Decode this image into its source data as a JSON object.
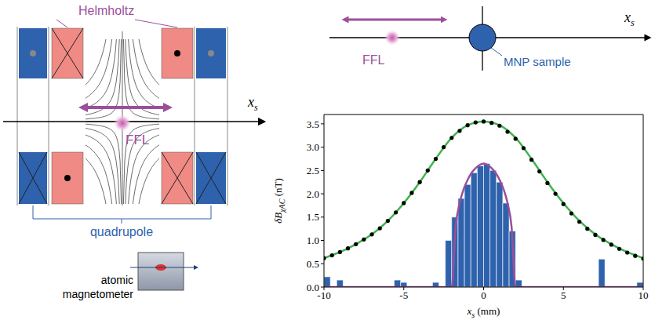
{
  "diagram": {
    "left": {
      "helmholtz_label": "Helmholtz",
      "quadrupole_label": "quadrupole",
      "ffl_label": "FFL",
      "axis_label": {
        "main": "x",
        "sub": "s"
      },
      "sensor_label": [
        "atomic",
        "magnetometer"
      ]
    },
    "top_right": {
      "ffl_label": "FFL",
      "sample_label": "MNP sample",
      "axis_label": {
        "main": "x",
        "sub": "s"
      }
    }
  },
  "chart_data": {
    "type": "histogram",
    "xlabel": {
      "main": "x",
      "sub": "s",
      "unit": " (mm)"
    },
    "ylabel": {
      "main": "δB",
      "sub": "χAC",
      "unit": " (nT)"
    },
    "xlim": [
      -10,
      10
    ],
    "xticks": [
      -10,
      -5,
      0,
      5,
      10
    ],
    "ylim": [
      0,
      3.7
    ],
    "yticks": [
      {
        "value": 0,
        "label": "0.0"
      },
      {
        "value": 0.5,
        "label": "0.5"
      },
      {
        "value": 1,
        "label": "1.0"
      },
      {
        "value": 1.5,
        "label": "1.5"
      },
      {
        "value": 2,
        "label": "2.0"
      },
      {
        "value": 2.5,
        "label": "2.5"
      },
      {
        "value": 3,
        "label": "3.0"
      },
      {
        "value": 3.5,
        "label": "3.5"
      }
    ],
    "grid": false,
    "color": "#2e62ad",
    "bins": [
      -10,
      -9.6,
      -9.2,
      -8.8,
      -8.4,
      -8,
      -7.6,
      -7.2,
      -6.8,
      -6.4,
      -6,
      -5.6,
      -5.2,
      -4.8,
      -4.4,
      -4,
      -3.6,
      -3.2,
      -2.8,
      -2.4,
      -2,
      -1.6,
      -1.2,
      -0.8,
      -0.4,
      0,
      0.4,
      0.8,
      1.2,
      1.6,
      2,
      2.4,
      2.8,
      3.2,
      3.6,
      4,
      4.4,
      4.8,
      5.2,
      5.6,
      6,
      6.4,
      6.8,
      7.2,
      7.6,
      8,
      8.4,
      8.8,
      9.2,
      9.6,
      10
    ],
    "counts": [
      0.22,
      0,
      0.15,
      0,
      0,
      0,
      0,
      0,
      0,
      0,
      0,
      0.15,
      0.1,
      0,
      0,
      0,
      0,
      0.1,
      0,
      1.0,
      1.5,
      1.9,
      2.2,
      2.45,
      2.6,
      2.65,
      2.5,
      2.25,
      1.8,
      1.2,
      0.15,
      0,
      0,
      0,
      0,
      0,
      0,
      0,
      0,
      0,
      0,
      0,
      0,
      0.6,
      0,
      0,
      0,
      0,
      0,
      0.1
    ],
    "series": [
      {
        "type": "line",
        "color": "#3cb54a",
        "x": [
          -10,
          -9,
          -8,
          -7,
          -6,
          -5,
          -4,
          -3,
          -2,
          -1,
          0,
          1,
          2,
          3,
          4,
          5,
          6,
          7,
          8,
          9,
          10
        ],
        "values": [
          0.62,
          0.75,
          0.92,
          1.13,
          1.42,
          1.8,
          2.25,
          2.75,
          3.2,
          3.47,
          3.55,
          3.47,
          3.2,
          2.75,
          2.25,
          1.8,
          1.42,
          1.13,
          0.92,
          0.75,
          0.62
        ]
      },
      {
        "type": "line",
        "color": "#9b4f9b",
        "x": [
          -10,
          -2,
          -1.75,
          -1.5,
          -1.25,
          -1,
          -0.75,
          -0.5,
          -0.25,
          0,
          0.25,
          0.5,
          0.75,
          1,
          1.25,
          1.5,
          1.75,
          2,
          10
        ],
        "values": [
          0,
          0,
          1.3,
          1.8,
          2.1,
          2.3,
          2.45,
          2.55,
          2.62,
          2.65,
          2.62,
          2.55,
          2.45,
          2.3,
          2.1,
          1.8,
          1.3,
          0,
          0
        ]
      },
      {
        "type": "scatter",
        "color": "#000000",
        "marker": "circle",
        "x": [
          -10,
          -9.5,
          -9,
          -8.5,
          -8,
          -7.5,
          -7,
          -6.5,
          -6,
          -5.5,
          -5,
          -4.5,
          -4,
          -3.5,
          -3,
          -2.5,
          -2,
          -1.5,
          -1,
          -0.5,
          0,
          0.5,
          1,
          1.5,
          2,
          2.5,
          3,
          3.5,
          4,
          4.5,
          5,
          5.5,
          6,
          6.5,
          7,
          7.5,
          8,
          8.5,
          9,
          9.5,
          10
        ],
        "values": [
          0.62,
          0.68,
          0.75,
          0.83,
          0.92,
          1.02,
          1.13,
          1.26,
          1.42,
          1.6,
          1.8,
          2.02,
          2.25,
          2.5,
          2.75,
          3.0,
          3.2,
          3.35,
          3.47,
          3.53,
          3.55,
          3.52,
          3.46,
          3.33,
          3.18,
          2.98,
          2.73,
          2.48,
          2.23,
          2.0,
          1.78,
          1.58,
          1.4,
          1.25,
          1.12,
          1.01,
          0.91,
          0.82,
          0.74,
          0.67,
          0.61
        ]
      }
    ]
  }
}
